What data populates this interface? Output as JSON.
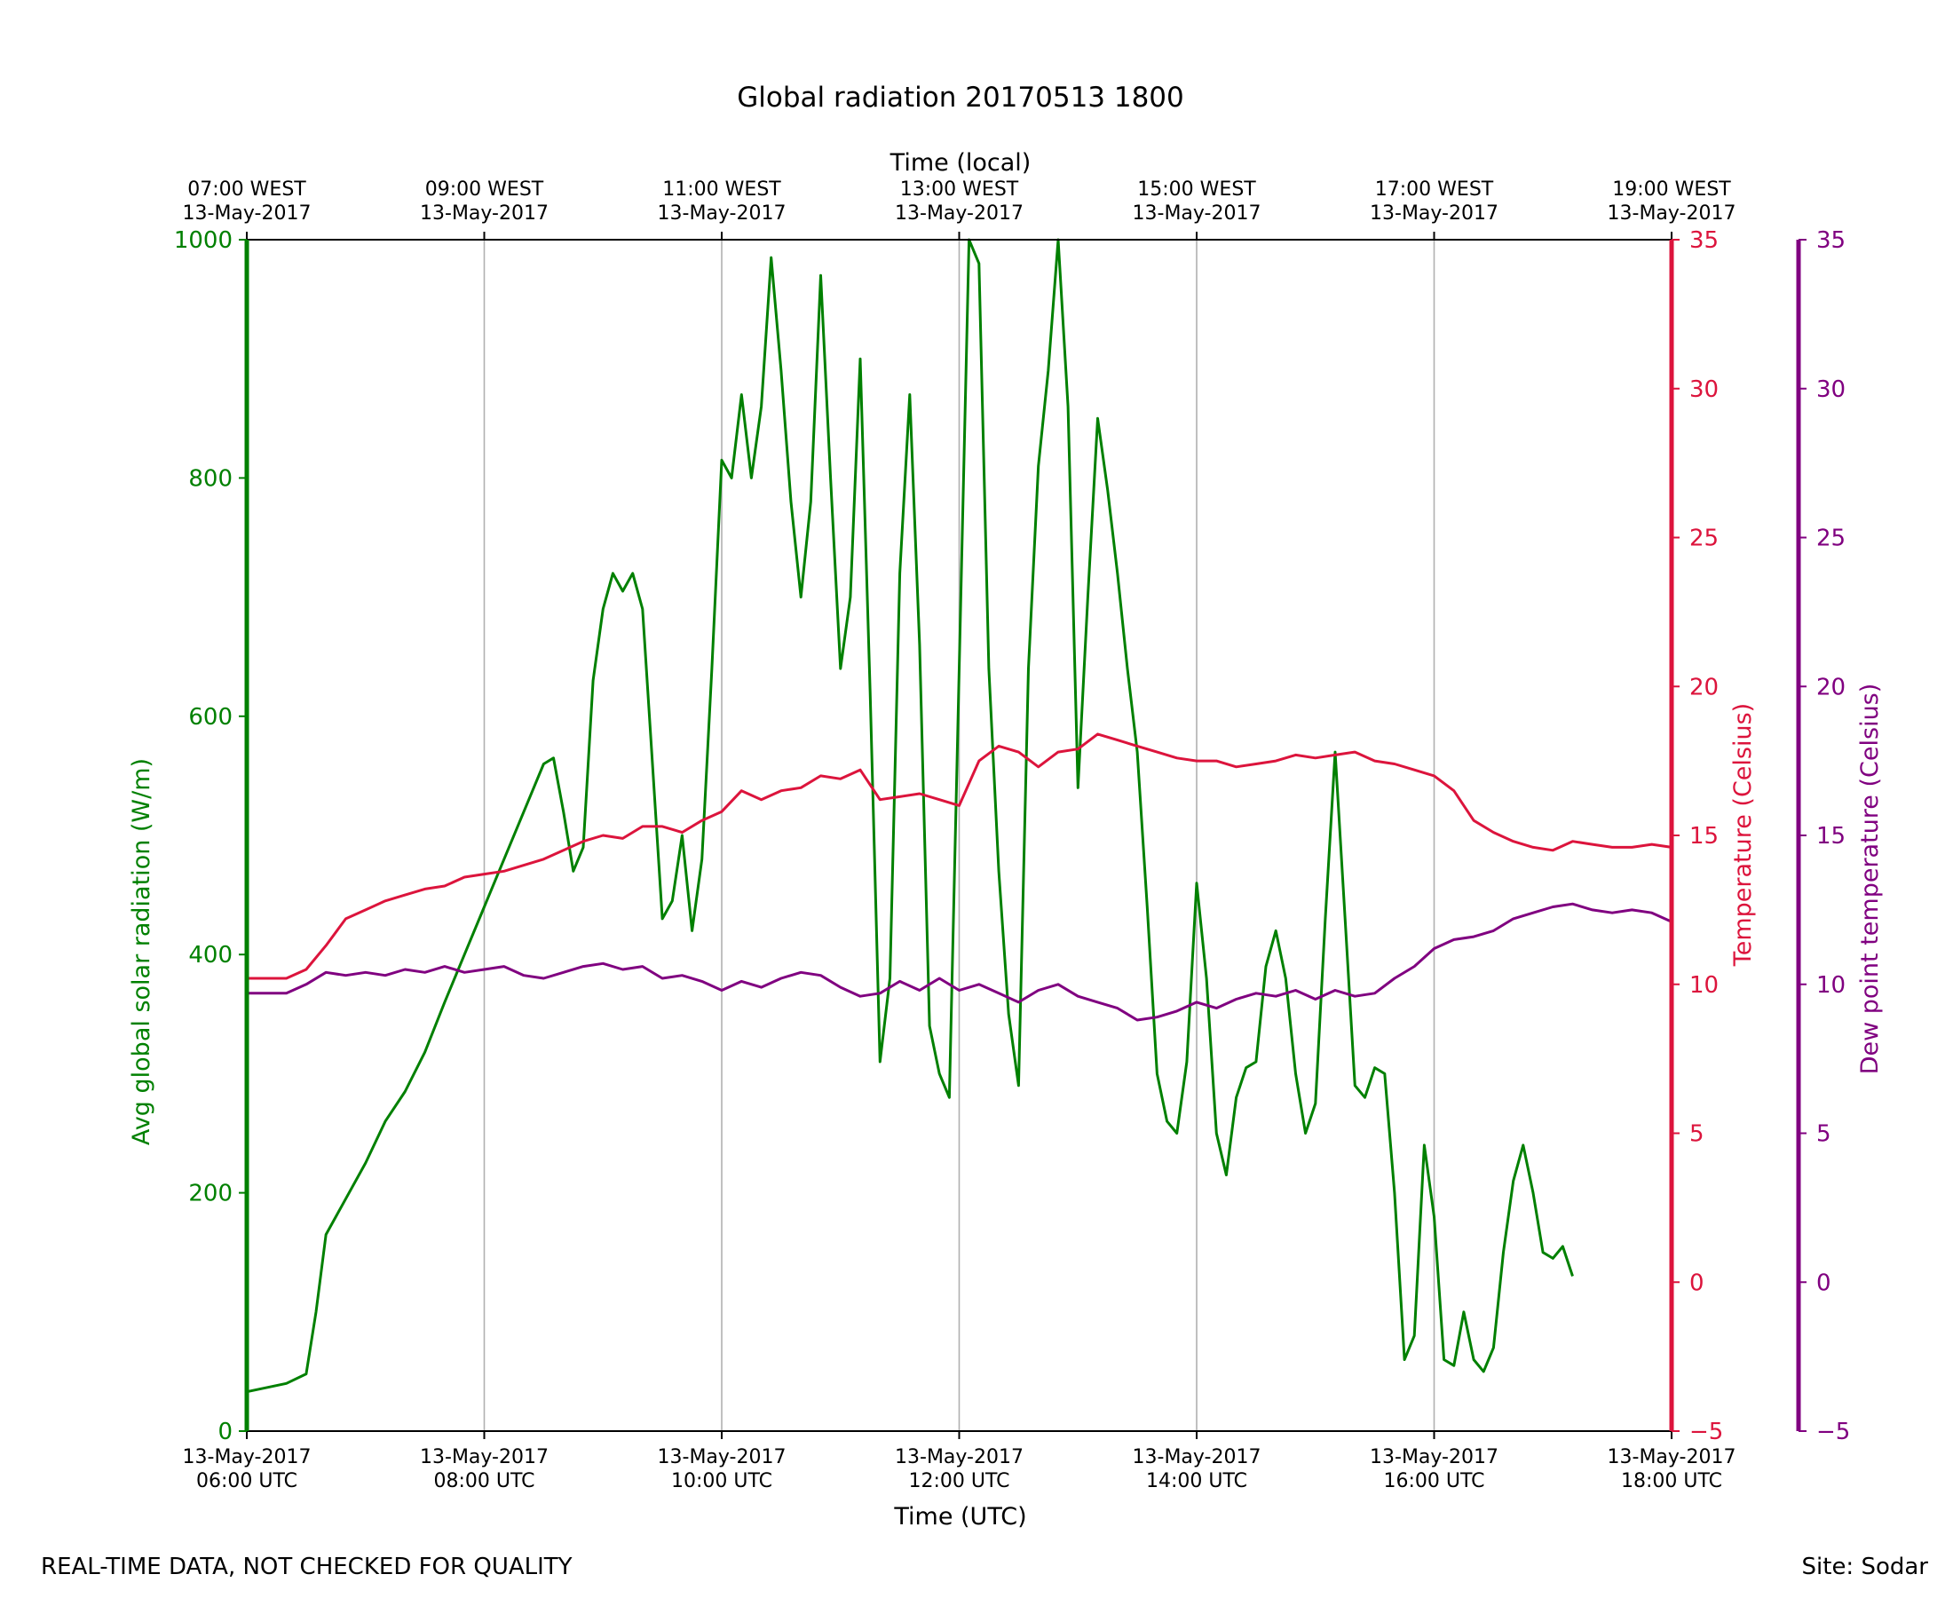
{
  "figure": {
    "title": "Global radiation 20170513 1800",
    "footer_left": "REAL-TIME DATA, NOT CHECKED FOR QUALITY",
    "footer_right": "Site: Sodar"
  },
  "colors": {
    "radiation": "#008000",
    "temperature": "#dc143c",
    "dewpoint": "#800080",
    "grid": "#b0b0b0",
    "axis": "#000000"
  },
  "chart_data": {
    "type": "line",
    "title": "Global radiation 20170513 1800",
    "xlabel": "Time (UTC)",
    "xlabel_top": "Time (local)",
    "xlim_hours_utc": [
      6,
      18
    ],
    "x_ticks_bottom": [
      {
        "date": "13-May-2017",
        "time": "06:00 UTC"
      },
      {
        "date": "13-May-2017",
        "time": "08:00 UTC"
      },
      {
        "date": "13-May-2017",
        "time": "10:00 UTC"
      },
      {
        "date": "13-May-2017",
        "time": "12:00 UTC"
      },
      {
        "date": "13-May-2017",
        "time": "14:00 UTC"
      },
      {
        "date": "13-May-2017",
        "time": "16:00 UTC"
      },
      {
        "date": "13-May-2017",
        "time": "18:00 UTC"
      }
    ],
    "x_ticks_top": [
      {
        "time": "07:00 WEST",
        "date": "13-May-2017"
      },
      {
        "time": "09:00 WEST",
        "date": "13-May-2017"
      },
      {
        "time": "11:00 WEST",
        "date": "13-May-2017"
      },
      {
        "time": "13:00 WEST",
        "date": "13-May-2017"
      },
      {
        "time": "15:00 WEST",
        "date": "13-May-2017"
      },
      {
        "time": "17:00 WEST",
        "date": "13-May-2017"
      },
      {
        "time": "19:00 WEST",
        "date": "13-May-2017"
      }
    ],
    "grid": "vertical",
    "y_axes": [
      {
        "id": "radiation",
        "label": "Avg global solar radiation (W/m)",
        "side": "left",
        "ylim": [
          0,
          1000
        ],
        "ticks": [
          0,
          200,
          400,
          600,
          800,
          1000
        ]
      },
      {
        "id": "temperature",
        "label": "Temperature (Celsius)",
        "side": "right",
        "ylim": [
          -5,
          35
        ],
        "ticks": [
          -5,
          0,
          5,
          10,
          15,
          20,
          25,
          30,
          35
        ]
      },
      {
        "id": "dewpoint",
        "label": "Dew point temperature (Celsius)",
        "side": "right-outer",
        "ylim": [
          -5,
          35
        ],
        "ticks": [
          -5,
          0,
          5,
          10,
          15,
          20,
          25,
          30,
          35
        ]
      }
    ],
    "series": [
      {
        "axis": "radiation",
        "points": [
          [
            "06:00",
            33
          ],
          [
            "06:20",
            40
          ],
          [
            "06:30",
            48
          ],
          [
            "06:35",
            100
          ],
          [
            "06:40",
            165
          ],
          [
            "06:50",
            195
          ],
          [
            "07:00",
            225
          ],
          [
            "07:10",
            260
          ],
          [
            "07:20",
            285
          ],
          [
            "07:30",
            318
          ],
          [
            "07:40",
            360
          ],
          [
            "07:50",
            400
          ],
          [
            "08:00",
            440
          ],
          [
            "08:10",
            480
          ],
          [
            "08:20",
            520
          ],
          [
            "08:30",
            560
          ],
          [
            "08:35",
            565
          ],
          [
            "08:40",
            520
          ],
          [
            "08:45",
            470
          ],
          [
            "08:50",
            490
          ],
          [
            "08:55",
            630
          ],
          [
            "09:00",
            690
          ],
          [
            "09:05",
            720
          ],
          [
            "09:10",
            705
          ],
          [
            "09:15",
            720
          ],
          [
            "09:20",
            690
          ],
          [
            "09:25",
            560
          ],
          [
            "09:30",
            430
          ],
          [
            "09:35",
            445
          ],
          [
            "09:40",
            500
          ],
          [
            "09:45",
            420
          ],
          [
            "09:50",
            480
          ],
          [
            "09:55",
            640
          ],
          [
            "10:00",
            815
          ],
          [
            "10:05",
            800
          ],
          [
            "10:10",
            870
          ],
          [
            "10:15",
            800
          ],
          [
            "10:20",
            860
          ],
          [
            "10:25",
            985
          ],
          [
            "10:30",
            890
          ],
          [
            "10:35",
            780
          ],
          [
            "10:40",
            700
          ],
          [
            "10:45",
            780
          ],
          [
            "10:50",
            970
          ],
          [
            "10:55",
            800
          ],
          [
            "11:00",
            640
          ],
          [
            "11:05",
            700
          ],
          [
            "11:10",
            900
          ],
          [
            "11:15",
            620
          ],
          [
            "11:20",
            310
          ],
          [
            "11:25",
            380
          ],
          [
            "11:30",
            720
          ],
          [
            "11:35",
            870
          ],
          [
            "11:40",
            660
          ],
          [
            "11:45",
            340
          ],
          [
            "11:50",
            300
          ],
          [
            "11:55",
            280
          ],
          [
            "12:00",
            640
          ],
          [
            "12:05",
            1000
          ],
          [
            "12:10",
            980
          ],
          [
            "12:15",
            640
          ],
          [
            "12:20",
            470
          ],
          [
            "12:25",
            350
          ],
          [
            "12:30",
            290
          ],
          [
            "12:35",
            640
          ],
          [
            "12:40",
            810
          ],
          [
            "12:45",
            890
          ],
          [
            "12:50",
            1000
          ],
          [
            "12:55",
            860
          ],
          [
            "13:00",
            540
          ],
          [
            "13:05",
            700
          ],
          [
            "13:10",
            850
          ],
          [
            "13:15",
            790
          ],
          [
            "13:20",
            720
          ],
          [
            "13:25",
            640
          ],
          [
            "13:30",
            570
          ],
          [
            "13:35",
            440
          ],
          [
            "13:40",
            300
          ],
          [
            "13:45",
            260
          ],
          [
            "13:50",
            250
          ],
          [
            "13:55",
            310
          ],
          [
            "14:00",
            460
          ],
          [
            "14:05",
            380
          ],
          [
            "14:10",
            250
          ],
          [
            "14:15",
            215
          ],
          [
            "14:20",
            280
          ],
          [
            "14:25",
            305
          ],
          [
            "14:30",
            310
          ],
          [
            "14:35",
            390
          ],
          [
            "14:40",
            420
          ],
          [
            "14:45",
            380
          ],
          [
            "14:50",
            300
          ],
          [
            "14:55",
            250
          ],
          [
            "15:00",
            275
          ],
          [
            "15:05",
            430
          ],
          [
            "15:10",
            570
          ],
          [
            "15:15",
            430
          ],
          [
            "15:20",
            290
          ],
          [
            "15:25",
            280
          ],
          [
            "15:30",
            305
          ],
          [
            "15:35",
            300
          ],
          [
            "15:40",
            200
          ],
          [
            "15:45",
            60
          ],
          [
            "15:50",
            80
          ],
          [
            "15:55",
            240
          ],
          [
            "16:00",
            180
          ],
          [
            "16:05",
            60
          ],
          [
            "16:10",
            55
          ],
          [
            "16:15",
            100
          ],
          [
            "16:20",
            60
          ],
          [
            "16:25",
            50
          ],
          [
            "16:30",
            70
          ],
          [
            "16:35",
            150
          ],
          [
            "16:40",
            210
          ],
          [
            "16:45",
            240
          ],
          [
            "16:50",
            200
          ],
          [
            "16:55",
            150
          ],
          [
            "17:00",
            145
          ],
          [
            "17:05",
            155
          ],
          [
            "17:10",
            130
          ]
        ]
      },
      {
        "axis": "temperature",
        "points": [
          [
            "06:00",
            10.2
          ],
          [
            "06:20",
            10.2
          ],
          [
            "06:30",
            10.5
          ],
          [
            "06:40",
            11.3
          ],
          [
            "06:50",
            12.2
          ],
          [
            "07:00",
            12.5
          ],
          [
            "07:10",
            12.8
          ],
          [
            "07:20",
            13.0
          ],
          [
            "07:30",
            13.2
          ],
          [
            "07:40",
            13.3
          ],
          [
            "07:50",
            13.6
          ],
          [
            "08:00",
            13.7
          ],
          [
            "08:10",
            13.8
          ],
          [
            "08:20",
            14.0
          ],
          [
            "08:30",
            14.2
          ],
          [
            "08:40",
            14.5
          ],
          [
            "08:50",
            14.8
          ],
          [
            "09:00",
            15.0
          ],
          [
            "09:10",
            14.9
          ],
          [
            "09:20",
            15.3
          ],
          [
            "09:30",
            15.3
          ],
          [
            "09:40",
            15.1
          ],
          [
            "09:50",
            15.5
          ],
          [
            "10:00",
            15.8
          ],
          [
            "10:10",
            16.5
          ],
          [
            "10:20",
            16.2
          ],
          [
            "10:30",
            16.5
          ],
          [
            "10:40",
            16.6
          ],
          [
            "10:50",
            17.0
          ],
          [
            "11:00",
            16.9
          ],
          [
            "11:10",
            17.2
          ],
          [
            "11:20",
            16.2
          ],
          [
            "11:30",
            16.3
          ],
          [
            "11:40",
            16.4
          ],
          [
            "11:50",
            16.2
          ],
          [
            "12:00",
            16.0
          ],
          [
            "12:10",
            17.5
          ],
          [
            "12:20",
            18.0
          ],
          [
            "12:30",
            17.8
          ],
          [
            "12:40",
            17.3
          ],
          [
            "12:50",
            17.8
          ],
          [
            "13:00",
            17.9
          ],
          [
            "13:10",
            18.4
          ],
          [
            "13:20",
            18.2
          ],
          [
            "13:30",
            18.0
          ],
          [
            "13:40",
            17.8
          ],
          [
            "13:50",
            17.6
          ],
          [
            "14:00",
            17.5
          ],
          [
            "14:10",
            17.5
          ],
          [
            "14:20",
            17.3
          ],
          [
            "14:30",
            17.4
          ],
          [
            "14:40",
            17.5
          ],
          [
            "14:50",
            17.7
          ],
          [
            "15:00",
            17.6
          ],
          [
            "15:10",
            17.7
          ],
          [
            "15:20",
            17.8
          ],
          [
            "15:30",
            17.5
          ],
          [
            "15:40",
            17.4
          ],
          [
            "15:50",
            17.2
          ],
          [
            "16:00",
            17.0
          ],
          [
            "16:10",
            16.5
          ],
          [
            "16:20",
            15.5
          ],
          [
            "16:30",
            15.1
          ],
          [
            "16:40",
            14.8
          ],
          [
            "16:50",
            14.6
          ],
          [
            "17:00",
            14.5
          ],
          [
            "17:10",
            14.8
          ],
          [
            "17:20",
            14.7
          ],
          [
            "17:30",
            14.6
          ],
          [
            "17:40",
            14.6
          ],
          [
            "17:50",
            14.7
          ],
          [
            "18:00",
            14.6
          ]
        ]
      },
      {
        "axis": "dewpoint",
        "points": [
          [
            "06:00",
            9.7
          ],
          [
            "06:20",
            9.7
          ],
          [
            "06:30",
            10.0
          ],
          [
            "06:40",
            10.4
          ],
          [
            "06:50",
            10.3
          ],
          [
            "07:00",
            10.4
          ],
          [
            "07:10",
            10.3
          ],
          [
            "07:20",
            10.5
          ],
          [
            "07:30",
            10.4
          ],
          [
            "07:40",
            10.6
          ],
          [
            "07:50",
            10.4
          ],
          [
            "08:00",
            10.5
          ],
          [
            "08:10",
            10.6
          ],
          [
            "08:20",
            10.3
          ],
          [
            "08:30",
            10.2
          ],
          [
            "08:40",
            10.4
          ],
          [
            "08:50",
            10.6
          ],
          [
            "09:00",
            10.7
          ],
          [
            "09:10",
            10.5
          ],
          [
            "09:20",
            10.6
          ],
          [
            "09:30",
            10.2
          ],
          [
            "09:40",
            10.3
          ],
          [
            "09:50",
            10.1
          ],
          [
            "10:00",
            9.8
          ],
          [
            "10:10",
            10.1
          ],
          [
            "10:20",
            9.9
          ],
          [
            "10:30",
            10.2
          ],
          [
            "10:40",
            10.4
          ],
          [
            "10:50",
            10.3
          ],
          [
            "11:00",
            9.9
          ],
          [
            "11:10",
            9.6
          ],
          [
            "11:20",
            9.7
          ],
          [
            "11:30",
            10.1
          ],
          [
            "11:40",
            9.8
          ],
          [
            "11:50",
            10.2
          ],
          [
            "12:00",
            9.8
          ],
          [
            "12:10",
            10.0
          ],
          [
            "12:20",
            9.7
          ],
          [
            "12:30",
            9.4
          ],
          [
            "12:40",
            9.8
          ],
          [
            "12:50",
            10.0
          ],
          [
            "13:00",
            9.6
          ],
          [
            "13:10",
            9.4
          ],
          [
            "13:20",
            9.2
          ],
          [
            "13:30",
            8.8
          ],
          [
            "13:40",
            8.9
          ],
          [
            "13:50",
            9.1
          ],
          [
            "14:00",
            9.4
          ],
          [
            "14:10",
            9.2
          ],
          [
            "14:20",
            9.5
          ],
          [
            "14:30",
            9.7
          ],
          [
            "14:40",
            9.6
          ],
          [
            "14:50",
            9.8
          ],
          [
            "15:00",
            9.5
          ],
          [
            "15:10",
            9.8
          ],
          [
            "15:20",
            9.6
          ],
          [
            "15:30",
            9.7
          ],
          [
            "15:40",
            10.2
          ],
          [
            "15:50",
            10.6
          ],
          [
            "16:00",
            11.2
          ],
          [
            "16:10",
            11.5
          ],
          [
            "16:20",
            11.6
          ],
          [
            "16:30",
            11.8
          ],
          [
            "16:40",
            12.2
          ],
          [
            "16:50",
            12.4
          ],
          [
            "17:00",
            12.6
          ],
          [
            "17:10",
            12.7
          ],
          [
            "17:20",
            12.5
          ],
          [
            "17:30",
            12.4
          ],
          [
            "17:40",
            12.5
          ],
          [
            "17:50",
            12.4
          ],
          [
            "18:00",
            12.1
          ]
        ]
      }
    ]
  }
}
